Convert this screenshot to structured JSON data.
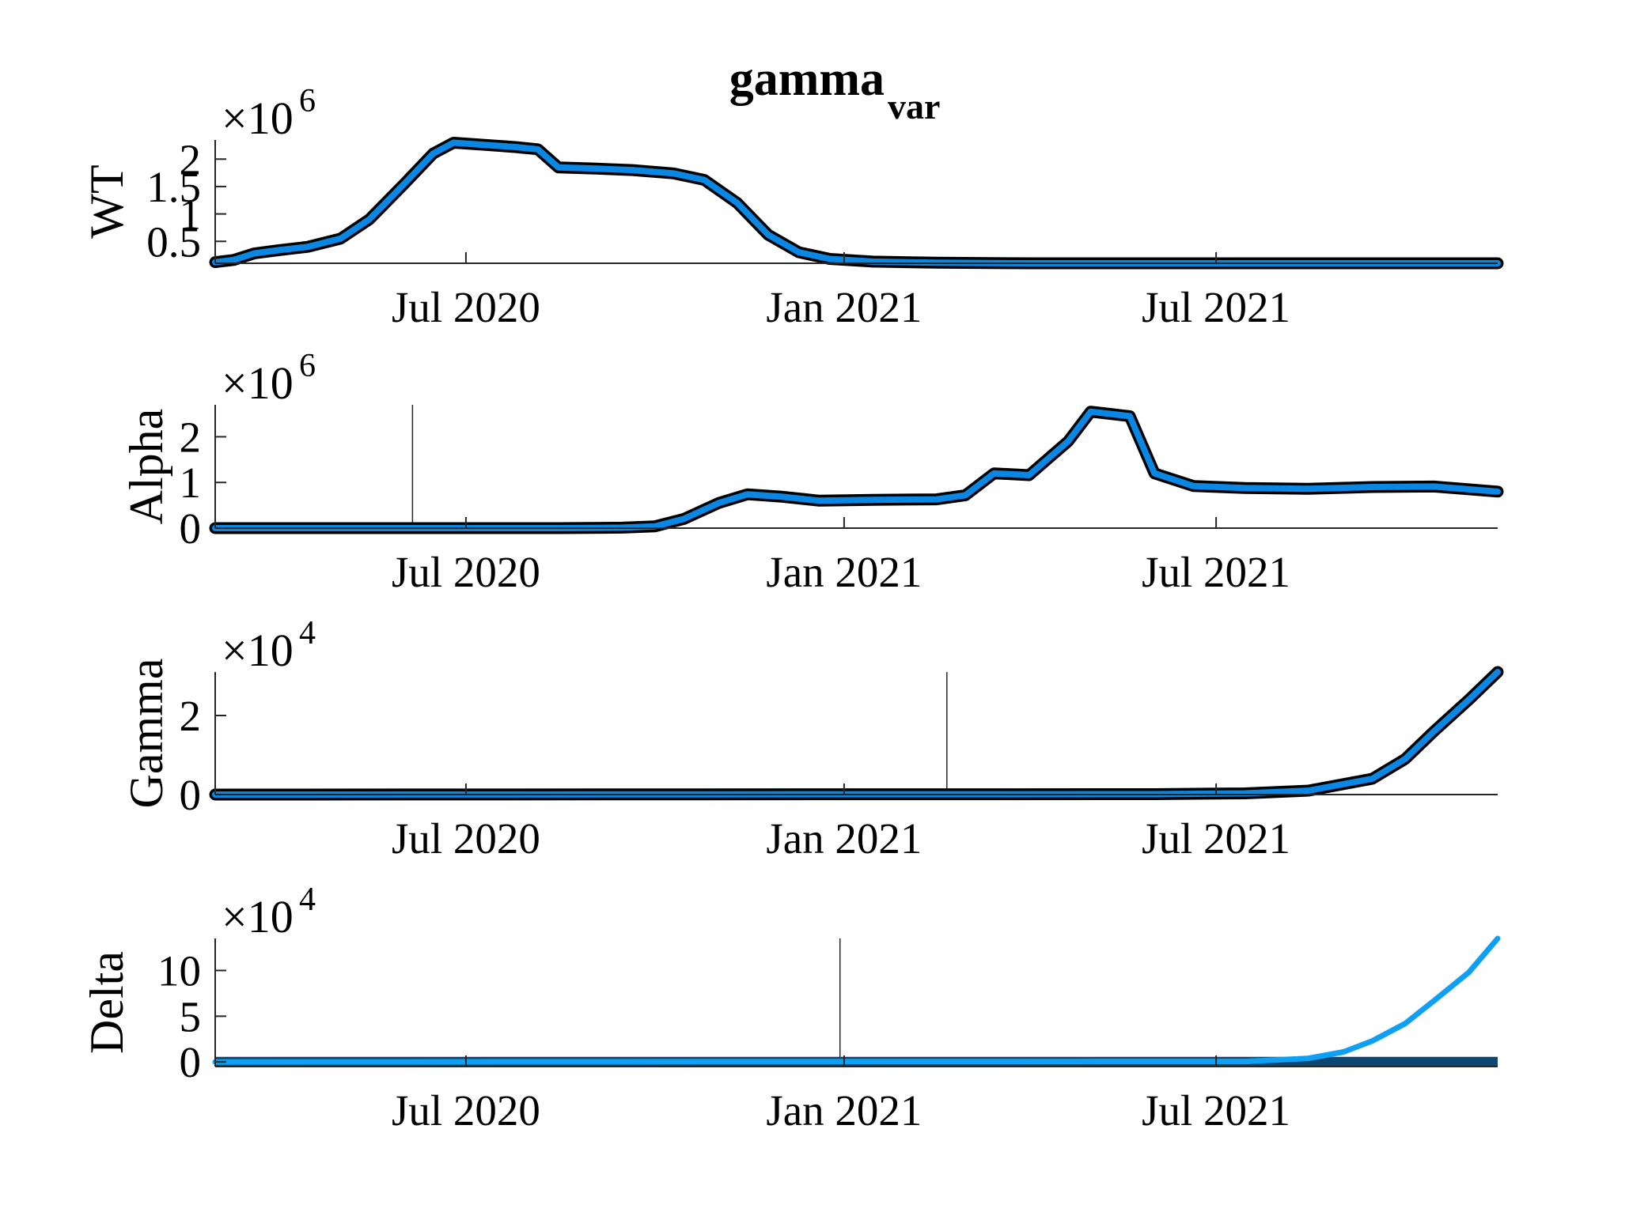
{
  "figure": {
    "title": "gamma",
    "title_subscript": "var"
  },
  "colors": {
    "line_outline": "#000000",
    "line_fill": "#0a86e3",
    "delta_fit": "#0ea0f5",
    "delta_data": "#0b4772",
    "axis": "#262626"
  },
  "chart_data": [
    {
      "type": "line",
      "ylabel": "WT",
      "exponent_base": "×10",
      "exponent": "6",
      "x_type": "date",
      "xlim": [
        "2020-03-01",
        "2021-11-15"
      ],
      "xticks": [
        {
          "date": "2020-07-01",
          "label": "Jul 2020"
        },
        {
          "date": "2021-01-01",
          "label": "Jan 2021"
        },
        {
          "date": "2021-07-01",
          "label": "Jul 2021"
        }
      ],
      "ylim": [
        0.1,
        2.35
      ],
      "yticks": [
        {
          "value": 0.5,
          "label": "0.5"
        },
        {
          "value": 1.0,
          "label": "1"
        },
        {
          "value": 1.5,
          "label": "1.5"
        },
        {
          "value": 2.0,
          "label": "2"
        }
      ],
      "markers": [],
      "series": [
        {
          "points": [
            [
              "2020-03-01",
              0.12
            ],
            [
              "2020-03-10",
              0.16
            ],
            [
              "2020-03-20",
              0.28
            ],
            [
              "2020-04-01",
              0.34
            ],
            [
              "2020-04-15",
              0.4
            ],
            [
              "2020-05-01",
              0.55
            ],
            [
              "2020-05-15",
              0.9
            ],
            [
              "2020-06-01",
              1.55
            ],
            [
              "2020-06-15",
              2.1
            ],
            [
              "2020-06-25",
              2.3
            ],
            [
              "2020-07-10",
              2.26
            ],
            [
              "2020-07-25",
              2.22
            ],
            [
              "2020-08-05",
              2.18
            ],
            [
              "2020-08-15",
              1.85
            ],
            [
              "2020-09-01",
              1.83
            ],
            [
              "2020-09-20",
              1.8
            ],
            [
              "2020-10-10",
              1.74
            ],
            [
              "2020-10-25",
              1.62
            ],
            [
              "2020-11-10",
              1.2
            ],
            [
              "2020-11-25",
              0.62
            ],
            [
              "2020-12-10",
              0.3
            ],
            [
              "2020-12-25",
              0.18
            ],
            [
              "2021-01-15",
              0.13
            ],
            [
              "2021-02-15",
              0.11
            ],
            [
              "2021-04-01",
              0.1
            ],
            [
              "2021-07-01",
              0.1
            ],
            [
              "2021-11-15",
              0.1
            ]
          ]
        }
      ]
    },
    {
      "type": "line",
      "ylabel": "Alpha",
      "exponent_base": "×10",
      "exponent": "6",
      "x_type": "date",
      "xlim": [
        "2020-03-01",
        "2021-11-15"
      ],
      "xticks": [
        {
          "date": "2020-07-01",
          "label": "Jul 2020"
        },
        {
          "date": "2021-01-01",
          "label": "Jan 2021"
        },
        {
          "date": "2021-07-01",
          "label": "Jul 2021"
        }
      ],
      "ylim": [
        0,
        2.7
      ],
      "yticks": [
        {
          "value": 0,
          "label": "0"
        },
        {
          "value": 1,
          "label": "1"
        },
        {
          "value": 2,
          "label": "2"
        }
      ],
      "markers": [
        "2020-06-05"
      ],
      "series": [
        {
          "points": [
            [
              "2020-03-01",
              0
            ],
            [
              "2020-08-15",
              0
            ],
            [
              "2020-09-15",
              0.01
            ],
            [
              "2020-10-01",
              0.04
            ],
            [
              "2020-10-15",
              0.2
            ],
            [
              "2020-11-01",
              0.55
            ],
            [
              "2020-11-15",
              0.74
            ],
            [
              "2020-12-01",
              0.69
            ],
            [
              "2020-12-20",
              0.6
            ],
            [
              "2021-01-15",
              0.62
            ],
            [
              "2021-02-15",
              0.63
            ],
            [
              "2021-03-01",
              0.72
            ],
            [
              "2021-03-15",
              1.2
            ],
            [
              "2021-04-01",
              1.16
            ],
            [
              "2021-04-20",
              1.9
            ],
            [
              "2021-05-01",
              2.55
            ],
            [
              "2021-05-20",
              2.45
            ],
            [
              "2021-06-01",
              1.2
            ],
            [
              "2021-06-20",
              0.92
            ],
            [
              "2021-07-15",
              0.88
            ],
            [
              "2021-08-15",
              0.86
            ],
            [
              "2021-09-15",
              0.9
            ],
            [
              "2021-10-15",
              0.91
            ],
            [
              "2021-11-15",
              0.8
            ]
          ]
        }
      ]
    },
    {
      "type": "line",
      "ylabel": "Gamma",
      "exponent_base": "×10",
      "exponent": "4",
      "x_type": "date",
      "xlim": [
        "2020-03-01",
        "2021-11-15"
      ],
      "xticks": [
        {
          "date": "2020-07-01",
          "label": "Jul 2020"
        },
        {
          "date": "2021-01-01",
          "label": "Jan 2021"
        },
        {
          "date": "2021-07-01",
          "label": "Jul 2021"
        }
      ],
      "ylim": [
        0,
        3.1
      ],
      "yticks": [
        {
          "value": 0,
          "label": "0"
        },
        {
          "value": 2,
          "label": "2"
        }
      ],
      "markers": [
        "2021-02-20"
      ],
      "series": [
        {
          "points": [
            [
              "2020-03-01",
              0
            ],
            [
              "2021-06-01",
              0.01
            ],
            [
              "2021-07-15",
              0.03
            ],
            [
              "2021-08-15",
              0.1
            ],
            [
              "2021-09-15",
              0.4
            ],
            [
              "2021-10-01",
              0.9
            ],
            [
              "2021-10-15",
              1.6
            ],
            [
              "2021-11-01",
              2.4
            ],
            [
              "2021-11-15",
              3.1
            ]
          ]
        }
      ]
    },
    {
      "type": "line",
      "ylabel": "Delta",
      "exponent_base": "×10",
      "exponent": "4",
      "x_type": "date",
      "xlim": [
        "2020-03-01",
        "2021-11-15"
      ],
      "xticks": [
        {
          "date": "2020-07-01",
          "label": "Jul 2020"
        },
        {
          "date": "2021-01-01",
          "label": "Jan 2021"
        },
        {
          "date": "2021-07-01",
          "label": "Jul 2021"
        }
      ],
      "ylim": [
        -0.5,
        13.5
      ],
      "yticks": [
        {
          "value": 0,
          "label": "0"
        },
        {
          "value": 5,
          "label": "5"
        },
        {
          "value": 10,
          "label": "10"
        }
      ],
      "markers": [
        "2020-12-30"
      ],
      "series": [
        {
          "role": "data",
          "points": [
            [
              "2020-03-01",
              0
            ],
            [
              "2021-11-15",
              0
            ]
          ]
        },
        {
          "role": "fit",
          "points": [
            [
              "2020-03-01",
              0
            ],
            [
              "2021-07-15",
              0.05
            ],
            [
              "2021-08-15",
              0.4
            ],
            [
              "2021-09-01",
              1.1
            ],
            [
              "2021-09-15",
              2.3
            ],
            [
              "2021-10-01",
              4.2
            ],
            [
              "2021-10-15",
              6.7
            ],
            [
              "2021-11-01",
              9.8
            ],
            [
              "2021-11-15",
              13.5
            ]
          ]
        }
      ]
    }
  ]
}
